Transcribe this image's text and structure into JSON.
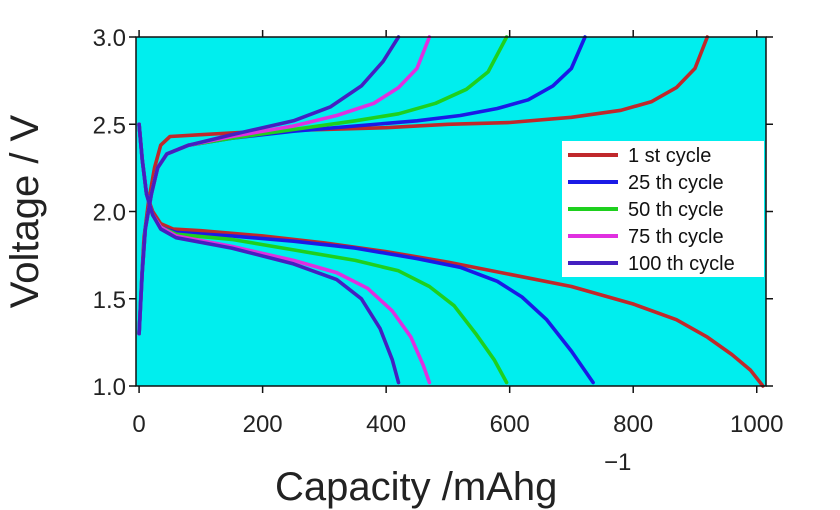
{
  "chart_data": {
    "type": "line",
    "xlabel": "Capacity /mAhg",
    "xlabel_superscript": "−1",
    "ylabel": "Voltage / V",
    "xlim": [
      -5,
      1015
    ],
    "ylim": [
      1.0,
      3.0
    ],
    "x_ticks": [
      0,
      200,
      400,
      600,
      800,
      1000
    ],
    "x_tick_labels": [
      "0",
      "200",
      "400",
      "600",
      "800",
      "1000"
    ],
    "y_ticks": [
      1.0,
      1.5,
      2.0,
      2.5,
      3.0
    ],
    "y_tick_labels": [
      "1.0",
      "1.5",
      "2.0",
      "2.5",
      "3.0"
    ],
    "plot_background": "#00EEEE",
    "grid": false,
    "legend_position": "right",
    "series": [
      {
        "name": "1 st cycle",
        "color": "#C0282B",
        "discharge": [
          [
            0,
            2.5
          ],
          [
            5,
            2.3
          ],
          [
            12,
            2.1
          ],
          [
            22,
            2.0
          ],
          [
            35,
            1.93
          ],
          [
            55,
            1.9
          ],
          [
            100,
            1.89
          ],
          [
            200,
            1.86
          ],
          [
            300,
            1.82
          ],
          [
            400,
            1.77
          ],
          [
            500,
            1.71
          ],
          [
            600,
            1.64
          ],
          [
            700,
            1.57
          ],
          [
            800,
            1.47
          ],
          [
            870,
            1.38
          ],
          [
            920,
            1.28
          ],
          [
            960,
            1.18
          ],
          [
            990,
            1.09
          ],
          [
            1010,
            1.0
          ]
        ],
        "charge": [
          [
            0,
            1.3
          ],
          [
            4,
            1.6
          ],
          [
            8,
            1.85
          ],
          [
            15,
            2.05
          ],
          [
            25,
            2.25
          ],
          [
            35,
            2.38
          ],
          [
            50,
            2.43
          ],
          [
            100,
            2.44
          ],
          [
            200,
            2.46
          ],
          [
            300,
            2.47
          ],
          [
            400,
            2.48
          ],
          [
            500,
            2.5
          ],
          [
            600,
            2.51
          ],
          [
            700,
            2.54
          ],
          [
            780,
            2.58
          ],
          [
            830,
            2.63
          ],
          [
            870,
            2.71
          ],
          [
            900,
            2.82
          ],
          [
            920,
            3.0
          ]
        ]
      },
      {
        "name": "25 th cycle",
        "color": "#1A1AE6",
        "discharge": [
          [
            0,
            2.5
          ],
          [
            5,
            2.3
          ],
          [
            12,
            2.1
          ],
          [
            22,
            1.98
          ],
          [
            35,
            1.91
          ],
          [
            60,
            1.88
          ],
          [
            150,
            1.86
          ],
          [
            250,
            1.83
          ],
          [
            350,
            1.79
          ],
          [
            450,
            1.73
          ],
          [
            520,
            1.68
          ],
          [
            580,
            1.6
          ],
          [
            620,
            1.51
          ],
          [
            660,
            1.38
          ],
          [
            700,
            1.2
          ],
          [
            735,
            1.02
          ]
        ],
        "charge": [
          [
            0,
            1.3
          ],
          [
            5,
            1.65
          ],
          [
            10,
            1.9
          ],
          [
            20,
            2.1
          ],
          [
            30,
            2.25
          ],
          [
            45,
            2.33
          ],
          [
            80,
            2.38
          ],
          [
            150,
            2.42
          ],
          [
            250,
            2.46
          ],
          [
            350,
            2.49
          ],
          [
            450,
            2.52
          ],
          [
            520,
            2.55
          ],
          [
            580,
            2.59
          ],
          [
            630,
            2.64
          ],
          [
            670,
            2.72
          ],
          [
            700,
            2.82
          ],
          [
            722,
            3.0
          ]
        ]
      },
      {
        "name": "50 th cycle",
        "color": "#1ED01E",
        "discharge": [
          [
            0,
            2.5
          ],
          [
            5,
            2.3
          ],
          [
            12,
            2.1
          ],
          [
            22,
            1.98
          ],
          [
            35,
            1.91
          ],
          [
            60,
            1.87
          ],
          [
            150,
            1.84
          ],
          [
            250,
            1.78
          ],
          [
            350,
            1.72
          ],
          [
            420,
            1.66
          ],
          [
            470,
            1.57
          ],
          [
            510,
            1.46
          ],
          [
            545,
            1.3
          ],
          [
            575,
            1.15
          ],
          [
            595,
            1.02
          ]
        ],
        "charge": [
          [
            0,
            1.3
          ],
          [
            5,
            1.65
          ],
          [
            10,
            1.9
          ],
          [
            20,
            2.1
          ],
          [
            30,
            2.25
          ],
          [
            45,
            2.33
          ],
          [
            80,
            2.38
          ],
          [
            150,
            2.42
          ],
          [
            250,
            2.47
          ],
          [
            350,
            2.52
          ],
          [
            420,
            2.56
          ],
          [
            480,
            2.62
          ],
          [
            530,
            2.7
          ],
          [
            565,
            2.8
          ],
          [
            595,
            3.0
          ]
        ]
      },
      {
        "name": "75 th cycle",
        "color": "#E030E0",
        "discharge": [
          [
            0,
            2.5
          ],
          [
            5,
            2.3
          ],
          [
            12,
            2.1
          ],
          [
            22,
            1.98
          ],
          [
            35,
            1.91
          ],
          [
            60,
            1.86
          ],
          [
            150,
            1.8
          ],
          [
            250,
            1.72
          ],
          [
            320,
            1.65
          ],
          [
            370,
            1.56
          ],
          [
            410,
            1.43
          ],
          [
            440,
            1.28
          ],
          [
            460,
            1.12
          ],
          [
            470,
            1.02
          ]
        ],
        "charge": [
          [
            0,
            1.3
          ],
          [
            5,
            1.65
          ],
          [
            10,
            1.9
          ],
          [
            20,
            2.1
          ],
          [
            30,
            2.25
          ],
          [
            45,
            2.33
          ],
          [
            80,
            2.38
          ],
          [
            150,
            2.43
          ],
          [
            250,
            2.49
          ],
          [
            320,
            2.55
          ],
          [
            380,
            2.62
          ],
          [
            420,
            2.71
          ],
          [
            450,
            2.82
          ],
          [
            470,
            3.0
          ]
        ]
      },
      {
        "name": "100 th cycle",
        "color": "#4420C0",
        "discharge": [
          [
            0,
            2.5
          ],
          [
            5,
            2.3
          ],
          [
            12,
            2.1
          ],
          [
            22,
            1.98
          ],
          [
            35,
            1.9
          ],
          [
            60,
            1.85
          ],
          [
            150,
            1.79
          ],
          [
            250,
            1.7
          ],
          [
            320,
            1.61
          ],
          [
            360,
            1.5
          ],
          [
            390,
            1.33
          ],
          [
            410,
            1.15
          ],
          [
            420,
            1.02
          ]
        ],
        "charge": [
          [
            0,
            1.3
          ],
          [
            5,
            1.65
          ],
          [
            10,
            1.9
          ],
          [
            20,
            2.1
          ],
          [
            30,
            2.25
          ],
          [
            45,
            2.33
          ],
          [
            80,
            2.38
          ],
          [
            150,
            2.44
          ],
          [
            250,
            2.52
          ],
          [
            310,
            2.6
          ],
          [
            360,
            2.72
          ],
          [
            395,
            2.86
          ],
          [
            420,
            3.0
          ]
        ]
      }
    ]
  }
}
